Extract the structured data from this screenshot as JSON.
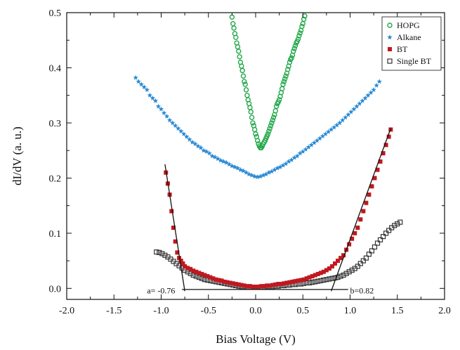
{
  "chart_data": {
    "type": "scatter",
    "title": "",
    "xlabel": "Bias Voltage (V)",
    "ylabel": "dI/dV (a. u.)",
    "xlim": [
      -2.0,
      2.0
    ],
    "ylim": [
      -0.02,
      0.5
    ],
    "xticks": [
      -2.0,
      -1.5,
      -1.0,
      -0.5,
      0.0,
      0.5,
      1.0,
      1.5,
      2.0
    ],
    "xtick_labels": [
      "-2.0",
      "-1.5",
      "-1.0",
      "-0.5",
      "0.0",
      "0.5",
      "1.0",
      "1.5",
      "2.0"
    ],
    "yticks": [
      0.0,
      0.1,
      0.2,
      0.3,
      0.4,
      0.5
    ],
    "ytick_labels": [
      "0.0",
      "0.1",
      "0.2",
      "0.3",
      "0.4",
      "0.5"
    ],
    "grid": false,
    "legend_position": "top-right",
    "series": [
      {
        "name": "HOPG",
        "marker": "open-circle",
        "color": "#22a84a",
        "x": [
          -0.25,
          -0.24,
          -0.23,
          -0.22,
          -0.21,
          -0.2,
          -0.19,
          -0.18,
          -0.17,
          -0.16,
          -0.15,
          -0.14,
          -0.13,
          -0.12,
          -0.11,
          -0.1,
          -0.09,
          -0.08,
          -0.07,
          -0.06,
          -0.05,
          -0.04,
          -0.03,
          -0.02,
          -0.01,
          0.0,
          0.01,
          0.02,
          0.03,
          0.04,
          0.05,
          0.06,
          0.07,
          0.08,
          0.09,
          0.1,
          0.11,
          0.12,
          0.13,
          0.14,
          0.15,
          0.16,
          0.17,
          0.18,
          0.19,
          0.2,
          0.21,
          0.22,
          0.23,
          0.24,
          0.25,
          0.26,
          0.27,
          0.28,
          0.29,
          0.3,
          0.31,
          0.32,
          0.33,
          0.34,
          0.35,
          0.36,
          0.37,
          0.38,
          0.39,
          0.4,
          0.41,
          0.42,
          0.43,
          0.44,
          0.45,
          0.46,
          0.47,
          0.48,
          0.49,
          0.5,
          0.51,
          0.52
        ],
        "y": [
          0.492,
          0.48,
          0.472,
          0.462,
          0.455,
          0.445,
          0.438,
          0.43,
          0.42,
          0.41,
          0.403,
          0.395,
          0.385,
          0.375,
          0.37,
          0.36,
          0.35,
          0.342,
          0.335,
          0.328,
          0.32,
          0.31,
          0.3,
          0.295,
          0.288,
          0.28,
          0.275,
          0.268,
          0.262,
          0.258,
          0.255,
          0.255,
          0.258,
          0.262,
          0.265,
          0.268,
          0.272,
          0.276,
          0.28,
          0.285,
          0.29,
          0.295,
          0.3,
          0.305,
          0.31,
          0.315,
          0.322,
          0.33,
          0.335,
          0.338,
          0.342,
          0.348,
          0.355,
          0.362,
          0.37,
          0.375,
          0.38,
          0.385,
          0.39,
          0.397,
          0.403,
          0.41,
          0.415,
          0.418,
          0.423,
          0.43,
          0.435,
          0.44,
          0.445,
          0.448,
          0.452,
          0.458,
          0.463,
          0.468,
          0.475,
          0.48,
          0.488,
          0.494
        ]
      },
      {
        "name": "Alkane",
        "marker": "star",
        "color": "#2a8ad4",
        "x": [
          -1.27,
          -1.24,
          -1.21,
          -1.18,
          -1.15,
          -1.12,
          -1.09,
          -1.06,
          -1.03,
          -1.0,
          -0.97,
          -0.94,
          -0.91,
          -0.88,
          -0.85,
          -0.82,
          -0.79,
          -0.76,
          -0.73,
          -0.7,
          -0.67,
          -0.64,
          -0.61,
          -0.58,
          -0.55,
          -0.52,
          -0.49,
          -0.46,
          -0.43,
          -0.4,
          -0.37,
          -0.34,
          -0.31,
          -0.28,
          -0.25,
          -0.22,
          -0.19,
          -0.16,
          -0.13,
          -0.1,
          -0.07,
          -0.04,
          -0.01,
          0.02,
          0.05,
          0.08,
          0.11,
          0.14,
          0.17,
          0.2,
          0.23,
          0.26,
          0.29,
          0.32,
          0.35,
          0.38,
          0.41,
          0.44,
          0.47,
          0.5,
          0.53,
          0.56,
          0.59,
          0.62,
          0.65,
          0.68,
          0.71,
          0.74,
          0.77,
          0.8,
          0.83,
          0.86,
          0.89,
          0.92,
          0.95,
          0.98,
          1.01,
          1.04,
          1.07,
          1.1,
          1.13,
          1.16,
          1.19,
          1.22,
          1.25,
          1.28,
          1.31
        ],
        "y": [
          0.382,
          0.375,
          0.37,
          0.365,
          0.36,
          0.35,
          0.345,
          0.34,
          0.33,
          0.325,
          0.318,
          0.312,
          0.305,
          0.3,
          0.295,
          0.29,
          0.285,
          0.28,
          0.275,
          0.27,
          0.265,
          0.262,
          0.258,
          0.255,
          0.25,
          0.248,
          0.245,
          0.24,
          0.238,
          0.235,
          0.232,
          0.23,
          0.228,
          0.225,
          0.222,
          0.22,
          0.218,
          0.215,
          0.213,
          0.21,
          0.207,
          0.205,
          0.203,
          0.202,
          0.203,
          0.205,
          0.207,
          0.21,
          0.212,
          0.215,
          0.218,
          0.22,
          0.223,
          0.226,
          0.23,
          0.233,
          0.237,
          0.24,
          0.245,
          0.248,
          0.252,
          0.256,
          0.26,
          0.264,
          0.268,
          0.272,
          0.276,
          0.28,
          0.284,
          0.288,
          0.292,
          0.296,
          0.3,
          0.305,
          0.31,
          0.315,
          0.32,
          0.325,
          0.33,
          0.335,
          0.34,
          0.345,
          0.35,
          0.355,
          0.36,
          0.368,
          0.375
        ]
      },
      {
        "name": "BT",
        "marker": "filled-square",
        "color": "#c0181f",
        "x": [
          -0.95,
          -0.93,
          -0.91,
          -0.89,
          -0.87,
          -0.85,
          -0.83,
          -0.81,
          -0.79,
          -0.77,
          -0.75,
          -0.72,
          -0.69,
          -0.66,
          -0.63,
          -0.6,
          -0.57,
          -0.54,
          -0.51,
          -0.48,
          -0.45,
          -0.42,
          -0.39,
          -0.36,
          -0.33,
          -0.3,
          -0.27,
          -0.24,
          -0.21,
          -0.18,
          -0.15,
          -0.12,
          -0.09,
          -0.06,
          -0.03,
          0.0,
          0.03,
          0.06,
          0.09,
          0.12,
          0.15,
          0.18,
          0.21,
          0.24,
          0.27,
          0.3,
          0.33,
          0.36,
          0.39,
          0.42,
          0.45,
          0.48,
          0.51,
          0.54,
          0.57,
          0.6,
          0.63,
          0.66,
          0.69,
          0.72,
          0.75,
          0.78,
          0.81,
          0.84,
          0.87,
          0.9,
          0.93,
          0.96,
          0.99,
          1.02,
          1.05,
          1.08,
          1.11,
          1.14,
          1.17,
          1.2,
          1.23,
          1.26,
          1.29,
          1.32,
          1.35,
          1.38,
          1.41,
          1.43
        ],
        "y": [
          0.21,
          0.19,
          0.17,
          0.14,
          0.11,
          0.085,
          0.065,
          0.055,
          0.05,
          0.045,
          0.04,
          0.037,
          0.035,
          0.032,
          0.03,
          0.028,
          0.026,
          0.024,
          0.022,
          0.02,
          0.018,
          0.016,
          0.015,
          0.014,
          0.012,
          0.011,
          0.01,
          0.009,
          0.008,
          0.007,
          0.006,
          0.005,
          0.004,
          0.004,
          0.003,
          0.003,
          0.003,
          0.004,
          0.004,
          0.005,
          0.005,
          0.006,
          0.007,
          0.008,
          0.008,
          0.009,
          0.01,
          0.011,
          0.012,
          0.013,
          0.014,
          0.015,
          0.016,
          0.018,
          0.02,
          0.022,
          0.024,
          0.026,
          0.028,
          0.03,
          0.033,
          0.036,
          0.04,
          0.045,
          0.05,
          0.055,
          0.06,
          0.07,
          0.08,
          0.09,
          0.1,
          0.11,
          0.125,
          0.14,
          0.155,
          0.17,
          0.185,
          0.2,
          0.215,
          0.23,
          0.245,
          0.26,
          0.275,
          0.288
        ]
      },
      {
        "name": "Single BT",
        "marker": "open-square",
        "color": "#333333",
        "x": [
          -1.05,
          -1.02,
          -0.99,
          -0.96,
          -0.93,
          -0.9,
          -0.87,
          -0.84,
          -0.81,
          -0.78,
          -0.75,
          -0.72,
          -0.69,
          -0.66,
          -0.63,
          -0.6,
          -0.57,
          -0.54,
          -0.51,
          -0.48,
          -0.45,
          -0.42,
          -0.39,
          -0.36,
          -0.33,
          -0.3,
          -0.27,
          -0.24,
          -0.21,
          -0.18,
          -0.15,
          -0.12,
          -0.09,
          -0.06,
          -0.03,
          0.0,
          0.03,
          0.06,
          0.09,
          0.12,
          0.15,
          0.18,
          0.21,
          0.24,
          0.27,
          0.3,
          0.33,
          0.36,
          0.39,
          0.42,
          0.45,
          0.48,
          0.51,
          0.54,
          0.57,
          0.6,
          0.63,
          0.66,
          0.69,
          0.72,
          0.75,
          0.78,
          0.81,
          0.84,
          0.87,
          0.9,
          0.93,
          0.96,
          0.99,
          1.02,
          1.05,
          1.08,
          1.11,
          1.14,
          1.17,
          1.2,
          1.23,
          1.26,
          1.29,
          1.32,
          1.35,
          1.38,
          1.41,
          1.44,
          1.47,
          1.5,
          1.53
        ],
        "y": [
          0.066,
          0.065,
          0.063,
          0.06,
          0.057,
          0.053,
          0.049,
          0.045,
          0.041,
          0.037,
          0.033,
          0.03,
          0.027,
          0.024,
          0.022,
          0.02,
          0.018,
          0.016,
          0.015,
          0.014,
          0.013,
          0.012,
          0.011,
          0.01,
          0.009,
          0.008,
          0.007,
          0.006,
          0.005,
          0.004,
          0.003,
          0.003,
          0.002,
          0.002,
          0.002,
          0.002,
          0.002,
          0.002,
          0.002,
          0.003,
          0.003,
          0.003,
          0.004,
          0.004,
          0.005,
          0.005,
          0.006,
          0.006,
          0.007,
          0.007,
          0.008,
          0.008,
          0.009,
          0.01,
          0.01,
          0.011,
          0.012,
          0.013,
          0.014,
          0.015,
          0.016,
          0.017,
          0.018,
          0.019,
          0.02,
          0.022,
          0.024,
          0.027,
          0.03,
          0.033,
          0.036,
          0.04,
          0.045,
          0.05,
          0.055,
          0.062,
          0.068,
          0.075,
          0.082,
          0.088,
          0.094,
          0.1,
          0.105,
          0.11,
          0.114,
          0.117,
          0.12
        ]
      }
    ],
    "fit_lines": [
      {
        "x": [
          -0.96,
          -0.75
        ],
        "y": [
          0.225,
          -0.005
        ]
      },
      {
        "x": [
          0.8,
          1.43
        ],
        "y": [
          -0.005,
          0.29
        ]
      },
      {
        "x": [
          -0.78,
          0.98
        ],
        "y": [
          -0.002,
          -0.002
        ]
      }
    ],
    "annotations": [
      {
        "text": "a= -0.76",
        "x": -1.15,
        "y": -0.003
      },
      {
        "text": "b=0.82",
        "x": 1.0,
        "y": -0.003
      }
    ]
  }
}
